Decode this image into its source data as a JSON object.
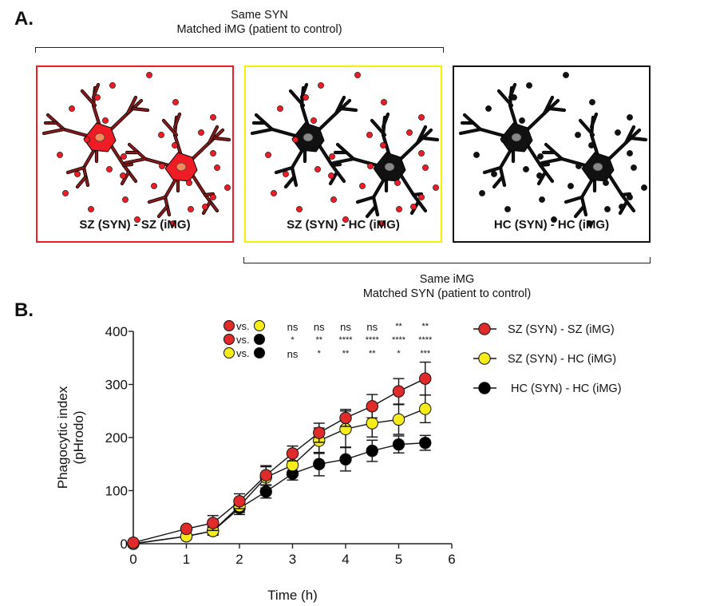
{
  "panel_a": {
    "letter": "A.",
    "top_bracket_caption": [
      "Same SYN",
      "Matched iMG (patient to control)"
    ],
    "bottom_bracket_caption": [
      "Same iMG",
      "Matched SYN (patient to control)"
    ],
    "panels": [
      {
        "label": "SZ (SYN) - SZ (iMG)",
        "border_color": "#ee1c24",
        "cell_color": "#ee1c24",
        "dendrite_color": "#8b1a1a",
        "nucleus_color": "#f08a5d",
        "particle_color": "#ee1c24"
      },
      {
        "label": "SZ (SYN) - HC (iMG)",
        "border_color": "#f5f000",
        "cell_color": "#111111",
        "dendrite_color": "#111111",
        "nucleus_color": "#888888",
        "particle_color": "#ee1c24"
      },
      {
        "label": "HC (SYN) - HC (iMG)",
        "border_color": "#111111",
        "cell_color": "#111111",
        "dendrite_color": "#111111",
        "nucleus_color": "#888888",
        "particle_color": "#111111"
      }
    ]
  },
  "panel_b": {
    "letter": "B.",
    "significance": {
      "rows": [
        {
          "a_color": "#e02b2b",
          "vs": "vs.",
          "b_color": "#f5ec1a",
          "marks": [
            "ns",
            "ns",
            "ns",
            "ns",
            "**",
            "**"
          ]
        },
        {
          "a_color": "#e02b2b",
          "vs": "vs.",
          "b_color": "#000000",
          "marks": [
            "*",
            "**",
            "****",
            "****",
            "****",
            "****"
          ]
        },
        {
          "a_color": "#f5ec1a",
          "vs": "vs.",
          "b_color": "#000000",
          "marks": [
            "ns",
            "*",
            "**",
            "**",
            "*",
            "***"
          ]
        }
      ],
      "at_x": [
        3,
        3.5,
        4,
        4.5,
        5,
        5.5
      ]
    }
  },
  "chart_data": {
    "type": "line",
    "title": "",
    "xlabel": "Time (h)",
    "ylabel": "Phagocytic index\n(pHrodo)",
    "ylabel_lines": [
      "Phagocytic index",
      "(pHrodo)"
    ],
    "xlim": [
      0,
      6
    ],
    "ylim": [
      0,
      400
    ],
    "xticks": [
      0,
      1,
      2,
      3,
      4,
      5,
      6
    ],
    "yticks": [
      0,
      100,
      200,
      300,
      400
    ],
    "grid": false,
    "legend_position": "right",
    "x": [
      0,
      1,
      1.5,
      2,
      2.5,
      3,
      3.5,
      4,
      4.5,
      5,
      5.5
    ],
    "series": [
      {
        "name": "HC (SYN) - HC (iMG)",
        "color": "#000000",
        "values": [
          0,
          14,
          24,
          67,
          98,
          132,
          150,
          159,
          175,
          187,
          190
        ],
        "errors": [
          2,
          4,
          6,
          12,
          12,
          12,
          22,
          22,
          20,
          16,
          14
        ]
      },
      {
        "name": "SZ (SYN) - HC (iMG)",
        "color": "#f5ec1a",
        "values": [
          0,
          14,
          24,
          71,
          125,
          148,
          194,
          216,
          227,
          234,
          254
        ],
        "errors": [
          2,
          4,
          8,
          12,
          20,
          18,
          24,
          34,
          26,
          28,
          26
        ]
      },
      {
        "name": "SZ (SYN) - SZ (iMG)",
        "color": "#e02b2b",
        "values": [
          2,
          28,
          39,
          80,
          129,
          170,
          209,
          237,
          259,
          287,
          311
        ],
        "errors": [
          2,
          4,
          14,
          14,
          18,
          14,
          18,
          16,
          22,
          24,
          31
        ]
      }
    ],
    "legend_order": [
      "SZ (SYN) - SZ (iMG)",
      "SZ (SYN) - HC (iMG)",
      "HC (SYN) - HC (iMG)"
    ]
  }
}
